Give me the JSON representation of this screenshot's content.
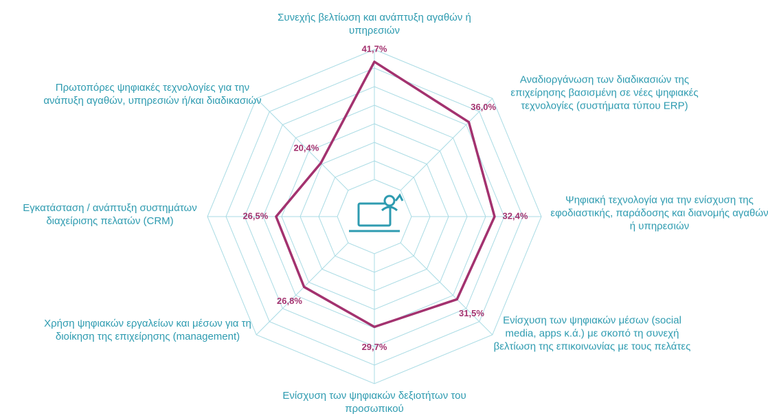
{
  "chart_data": {
    "type": "radar",
    "categories": [
      "Συνεχής βελτίωση και ανάπτυξη αγαθών ή υπηρεσιών",
      "Αναδιοργάνωση των διαδικασιών της επιχείρησης βασισμένη σε νέες ψηφιακές τεχνολογίες (συστήματα τύπου ERP)",
      "Ψηφιακή τεχνολογία για την ενίσχυση της εφοδιαστικής, παράδοσης και διανομής αγαθών ή υπηρεσιών",
      "Ενίσχυση των ψηφιακών μέσων (social media, apps κ.ά.) με σκοπό τη συνεχή βελτίωση της επικοινωνίας με τους πελάτες",
      "Ενίσχυση των ψηφιακών δεξιοτήτων του προσωπικού",
      "Χρήση ψηφιακών εργαλείων και μέσων για τη διοίκηση της επιχείρησης (management)",
      "Εγκατάσταση / ανάπτυξη συστημάτων διαχείρισης πελατών (CRM)",
      "Πρωτοπόρες ψηφιακές τεχνολογίες για την ανάπυξη αγαθών, υπηρεσιών ή/και διαδικασιών"
    ],
    "values": [
      41.7,
      36.0,
      32.4,
      31.5,
      29.7,
      26.8,
      26.5,
      20.4
    ],
    "value_labels": [
      "41,7%",
      "36,0%",
      "32,4%",
      "31,5%",
      "29,7%",
      "26,8%",
      "26,5%",
      "20,4%"
    ],
    "color": "#a3326f",
    "ylim": [
      0,
      45
    ],
    "yticks": [
      10,
      15,
      20,
      25,
      30,
      35,
      40,
      45
    ],
    "grid": true
  }
}
